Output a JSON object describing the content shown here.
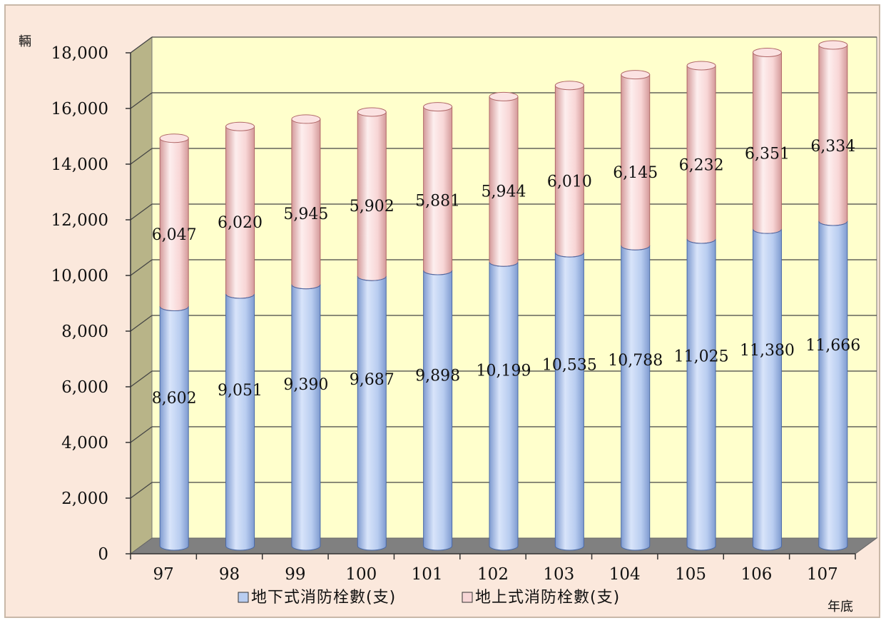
{
  "chart_data": {
    "type": "bar",
    "style": "3d-stacked-cylinder",
    "categories": [
      "97",
      "98",
      "99",
      "100",
      "101",
      "102",
      "103",
      "104",
      "105",
      "106",
      "107"
    ],
    "series": [
      {
        "name": "地下式消防栓數(支)",
        "color": "#b9cdf0",
        "values": [
          8602,
          9051,
          9390,
          9687,
          9898,
          10199,
          10535,
          10788,
          11025,
          11380,
          11666
        ],
        "labels": [
          "8,602",
          "9,051",
          "9,390",
          "9,687",
          "9,898",
          "10,199",
          "10,535",
          "10,788",
          "11,025",
          "11,380",
          "11,666"
        ]
      },
      {
        "name": "地上式消防栓數(支)",
        "color": "#f8d6d6",
        "values": [
          6047,
          6020,
          5945,
          5902,
          5881,
          5944,
          6010,
          6145,
          6232,
          6351,
          6334
        ],
        "labels": [
          "6,047",
          "6,020",
          "5,945",
          "5,902",
          "5,881",
          "5,944",
          "6,010",
          "6,145",
          "6,232",
          "6,351",
          "6,334"
        ]
      }
    ],
    "y_ticks": [
      "0",
      "2,000",
      "4,000",
      "6,000",
      "8,000",
      "10,000",
      "12,000",
      "14,000",
      "16,000",
      "18,000"
    ],
    "y_unit": "輛",
    "x_unit": "年底",
    "ylim": [
      0,
      18000
    ],
    "grid": true,
    "legend_position": "bottom",
    "colors": {
      "plot_back": "#ffffcc",
      "plot_side": "#b8b488",
      "plot_floor": "#808080",
      "outer_background": "#fbe8dc"
    }
  }
}
